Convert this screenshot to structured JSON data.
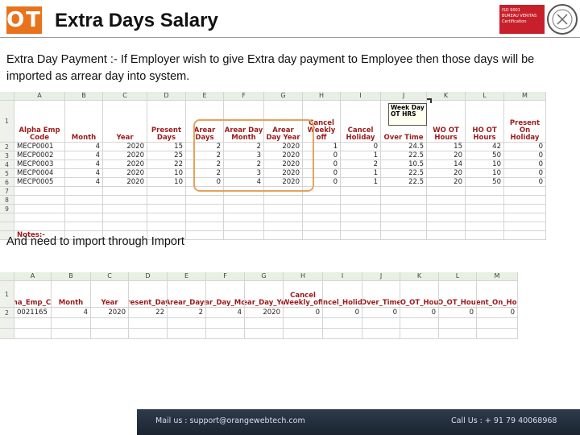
{
  "header": {
    "logo": "OT",
    "title": "Extra Days Salary",
    "badge": [
      "ISO 9001",
      "BUREAU VERITAS",
      "Certification"
    ]
  },
  "intro": "Extra Day Payment :- If Employer wish to give Extra day payment to Employee then those days will be imported as arrear day into system.",
  "sheet1": {
    "columns": [
      "A",
      "B",
      "C",
      "D",
      "E",
      "F",
      "G",
      "H",
      "I",
      "J",
      "K",
      "L",
      "M"
    ],
    "row_numbers": [
      "1",
      "2",
      "3",
      "4",
      "5",
      "6",
      "7",
      "8",
      "9"
    ],
    "headers": [
      "Alpha Emp Code",
      "Month",
      "Year",
      "Present Days",
      "Arear Days",
      "Arear Day Month",
      "Arear Day Year",
      "Cancel Weekly off",
      "Cancel Holiday",
      "Over Time",
      "WO OT Hours",
      "HO OT Hours",
      "Present On Holiday"
    ],
    "rows": [
      [
        "MECP0001",
        4,
        2020,
        15,
        2,
        2,
        2020,
        1,
        0,
        24.5,
        15,
        42,
        0
      ],
      [
        "MECP0002",
        4,
        2020,
        25,
        2,
        3,
        2020,
        0,
        1,
        22.5,
        20,
        50,
        0
      ],
      [
        "MECP0003",
        4,
        2020,
        22,
        2,
        2,
        2020,
        0,
        2,
        10.5,
        14,
        10,
        0
      ],
      [
        "MECP0004",
        4,
        2020,
        10,
        2,
        3,
        2020,
        0,
        1,
        22.5,
        20,
        10,
        0
      ],
      [
        "MECP0005",
        4,
        2020,
        10,
        0,
        4,
        2020,
        0,
        1,
        22.5,
        20,
        50,
        0
      ]
    ],
    "comment": "Week Day OT HRS",
    "notes": "Notes:-"
  },
  "import_text": "And need to import through Import",
  "sheet2": {
    "columns": [
      "A",
      "B",
      "C",
      "D",
      "E",
      "F",
      "G",
      "H",
      "I",
      "J",
      "K",
      "L",
      "M"
    ],
    "row_numbers": [
      "1",
      "2"
    ],
    "headers": [
      "Alpha_Emp_Code",
      "Month",
      "Year",
      "Present_Days",
      "Arear_Days",
      "Arear_Day_Month",
      "Arear_Day_Year",
      "Cancel Weekly_off",
      "Cancel_Holiday",
      "Over_Time",
      "WO_OT_Hours",
      "HO_OT_Hours",
      "Present_On_Holiday"
    ],
    "rows": [
      [
        "0021165",
        4,
        2020,
        22,
        2,
        4,
        2020,
        0,
        0,
        0,
        0,
        0,
        0
      ]
    ]
  },
  "footer": {
    "mail": "Mail us : support@orangewebtech.com",
    "call": "Call Us : + 91 79 40068968"
  }
}
